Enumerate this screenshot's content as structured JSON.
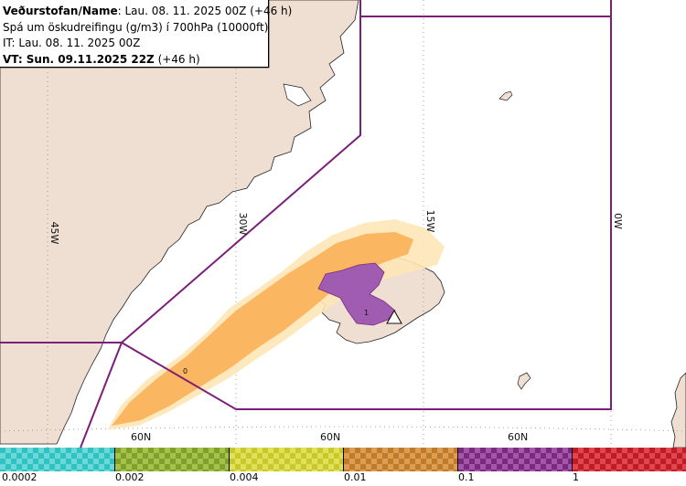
{
  "header": {
    "name_label": "Veðurstofan/Name",
    "name_value": ": Lau. 08. 11. 2025 00Z (+46 h)",
    "product": "Spá um öskudreifingu (g/m3) í 700hPa (10000ft)",
    "issue_time": "IT: Lau. 08. 11. 2025 00Z",
    "valid_label": "VT: Sun. 09.11.2025 22Z",
    "valid_suffix": " (+46 h)"
  },
  "map": {
    "longitude_labels": [
      "45W",
      "30W",
      "15W",
      "0W"
    ],
    "latitude_labels": [
      "60N",
      "60N",
      "60N"
    ],
    "plume_labels": [
      "0",
      "1"
    ],
    "volcano_label": "∆",
    "colors": {
      "sea": "#ffffff",
      "land": "#efdfd3",
      "coast": "#222222",
      "grid": "#8a8a8a",
      "fir_boundary": "#7a1f7a",
      "ash_low": "#fcd48a",
      "ash_mid": "#fbb35c",
      "ash_high": "#a05cb0"
    }
  },
  "legend": {
    "segments": [
      {
        "name": "0.0002-0.002",
        "color": "#2ec3c3",
        "alt": "#6ed8d8"
      },
      {
        "name": "0.002-0.004",
        "color": "#7fa02c",
        "alt": "#a5c24a"
      },
      {
        "name": "0.004-0.01",
        "color": "#c8c82a",
        "alt": "#e0e05a"
      },
      {
        "name": "0.01-0.1",
        "color": "#c07a2a",
        "alt": "#dc9e52"
      },
      {
        "name": "0.1-1",
        "color": "#7c2a80",
        "alt": "#a457a8"
      },
      {
        "name": "1+",
        "color": "#c01c28",
        "alt": "#e0464e"
      }
    ],
    "labels": [
      "0.0002",
      "0.002",
      "0.004",
      "0.01",
      "0.1",
      "1"
    ]
  }
}
